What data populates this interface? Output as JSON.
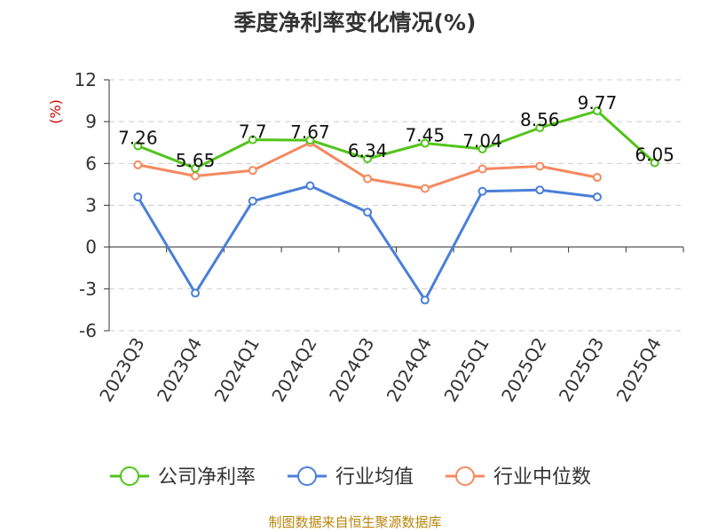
{
  "chart_data": {
    "type": "line",
    "title": "季度净利率变化情况(%)",
    "ylabel": "(%)",
    "xlabel": "",
    "ylim": [
      -6,
      12
    ],
    "yticks": [
      -6,
      -3,
      0,
      3,
      6,
      9,
      12
    ],
    "grid": true,
    "legend_position": "bottom",
    "categories": [
      "2023Q3",
      "2023Q4",
      "2024Q1",
      "2024Q2",
      "2024Q3",
      "2024Q4",
      "2025Q1",
      "2025Q2",
      "2025Q3",
      "2025Q4"
    ],
    "series": [
      {
        "name": "公司净利率",
        "color": "#52c41a",
        "values": [
          7.26,
          5.65,
          7.7,
          7.67,
          6.34,
          7.45,
          7.04,
          8.56,
          9.77,
          6.05
        ],
        "show_labels": true
      },
      {
        "name": "行业均值",
        "color": "#4a7fd8",
        "values": [
          3.6,
          -3.3,
          3.3,
          4.4,
          2.5,
          -3.8,
          4.0,
          4.1,
          3.6,
          null
        ],
        "show_labels": false
      },
      {
        "name": "行业中位数",
        "color": "#f4895f",
        "values": [
          5.9,
          5.1,
          5.5,
          7.5,
          4.9,
          4.2,
          5.6,
          5.8,
          5.0,
          null
        ],
        "show_labels": false
      }
    ],
    "source": "制图数据来自恒生聚源数据库"
  }
}
